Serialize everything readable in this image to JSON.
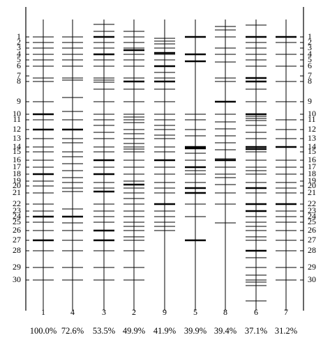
{
  "rows": [
    "1",
    "2",
    "3",
    "4",
    "5",
    "6",
    "7",
    "8",
    "9",
    "10",
    "11",
    "12",
    "13",
    "14",
    "15",
    "16",
    "17",
    "18",
    "19",
    "20",
    "21",
    "22",
    "23",
    "24",
    "25",
    "26",
    "27",
    "28",
    "29",
    "30"
  ],
  "lanes": [
    {
      "label": "1",
      "percent": "100.0%"
    },
    {
      "label": "4",
      "percent": "72.6%"
    },
    {
      "label": "3",
      "percent": "53.5%"
    },
    {
      "label": "2",
      "percent": "49.9%"
    },
    {
      "label": "9",
      "percent": "41.9%"
    },
    {
      "label": "5",
      "percent": "39.9%"
    },
    {
      "label": "8",
      "percent": "39.4%"
    },
    {
      "label": "6",
      "percent": "37.1%"
    },
    {
      "label": "7",
      "percent": "31.2%"
    }
  ]
}
